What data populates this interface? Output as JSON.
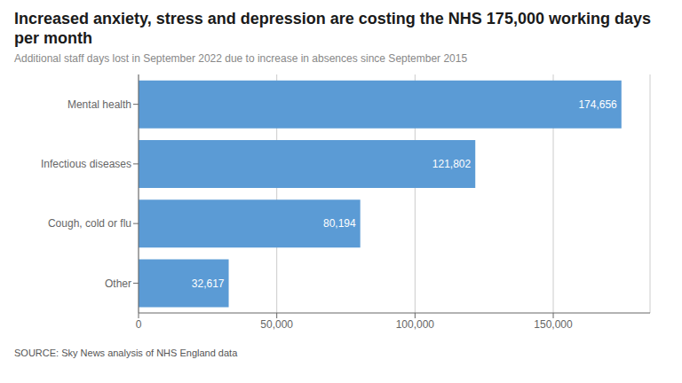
{
  "chart_data": {
    "type": "bar",
    "orientation": "horizontal",
    "title": "Increased anxiety, stress and depression are costing the NHS 175,000 working days per month",
    "subtitle": "Additional staff days lost in September 2022 due to increase in absences since September 2015",
    "source": "SOURCE: Sky News analysis of NHS England data",
    "categories": [
      "Mental health",
      "Infectious diseases",
      "Cough, cold or flu",
      "Other"
    ],
    "values": [
      174656,
      121802,
      80194,
      32617
    ],
    "value_labels": [
      "174,656",
      "121,802",
      "80,194",
      "32,617"
    ],
    "data_labels": true,
    "color": "#5b9bd5",
    "xlim": [
      0,
      185000
    ],
    "xticks": [
      0,
      {
        "value": 50000,
        "label": "50,000"
      },
      {
        "value": 100000,
        "label": "100,000"
      },
      {
        "value": 150000,
        "label": "150,000"
      }
    ],
    "grid": true
  }
}
